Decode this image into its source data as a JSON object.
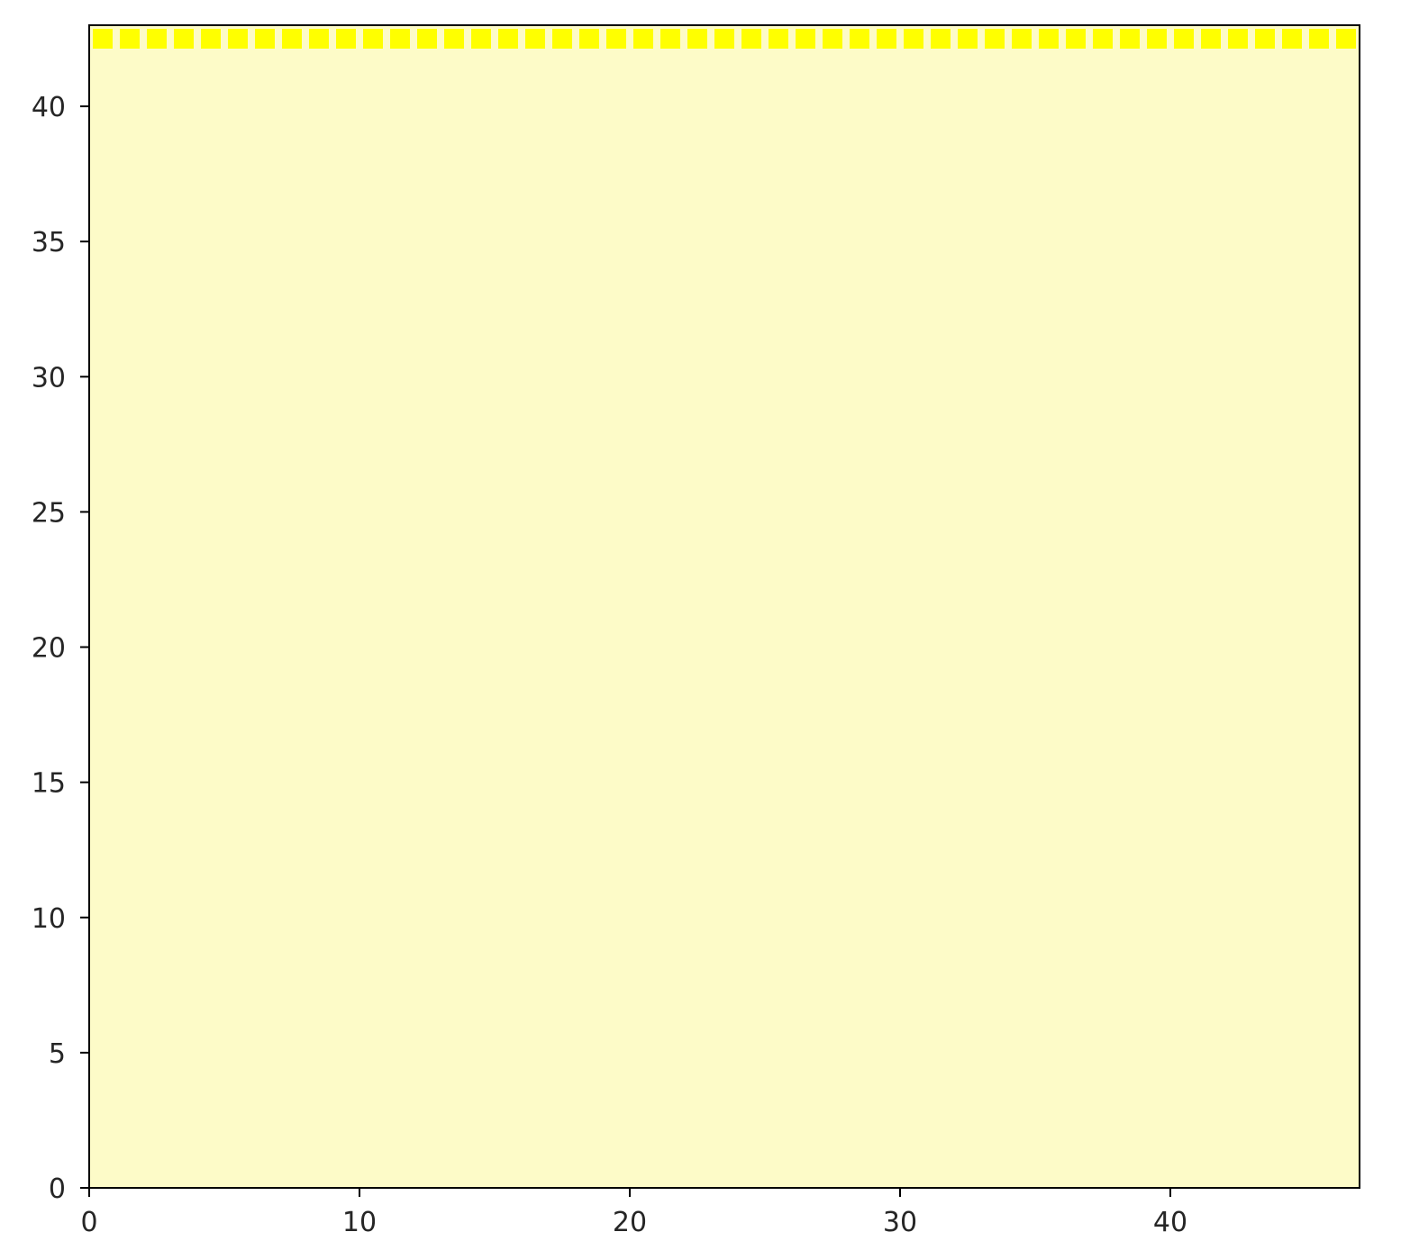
{
  "chart_data": {
    "type": "scatter",
    "xlim": [
      0,
      47
    ],
    "ylim": [
      0,
      43
    ],
    "x_ticks": [
      0,
      10,
      20,
      30,
      40
    ],
    "y_ticks": [
      0,
      5,
      10,
      15,
      20,
      25,
      30,
      35,
      40
    ],
    "x_tick_labels": [
      "0",
      "10",
      "20",
      "30",
      "40"
    ],
    "y_tick_labels": [
      "0",
      "5",
      "10",
      "15",
      "20",
      "25",
      "30",
      "35",
      "40"
    ],
    "grid": false,
    "legend": "none",
    "title": "",
    "xlabel": "",
    "ylabel": "",
    "marker": "square",
    "series": [
      {
        "x": [
          0.5,
          1.5,
          2.5,
          3.5,
          4.5,
          5.5,
          6.5,
          7.5,
          8.5,
          9.5,
          10.5,
          11.5,
          12.5,
          13.5,
          14.5,
          15.5,
          16.5,
          17.5,
          18.5,
          19.5,
          20.5,
          21.5,
          22.5,
          23.5,
          24.5,
          25.5,
          26.5,
          27.5,
          28.5,
          29.5,
          30.5,
          31.5,
          32.5,
          33.5,
          34.5,
          35.5,
          36.5,
          37.5,
          38.5,
          39.5,
          40.5,
          41.5,
          42.5,
          43.5,
          44.5,
          45.5,
          46.5
        ],
        "y": [
          42.5,
          42.5,
          42.5,
          42.5,
          42.5,
          42.5,
          42.5,
          42.5,
          42.5,
          42.5,
          42.5,
          42.5,
          42.5,
          42.5,
          42.5,
          42.5,
          42.5,
          42.5,
          42.5,
          42.5,
          42.5,
          42.5,
          42.5,
          42.5,
          42.5,
          42.5,
          42.5,
          42.5,
          42.5,
          42.5,
          42.5,
          42.5,
          42.5,
          42.5,
          42.5,
          42.5,
          42.5,
          42.5,
          42.5,
          42.5,
          42.5,
          42.5,
          42.5,
          42.5,
          42.5,
          42.5,
          42.5
        ]
      }
    ],
    "colors": {
      "plot_background": "#fdfbc8",
      "marker": "#ffff00",
      "axes": "#000000",
      "tick_text": "#262626"
    }
  }
}
